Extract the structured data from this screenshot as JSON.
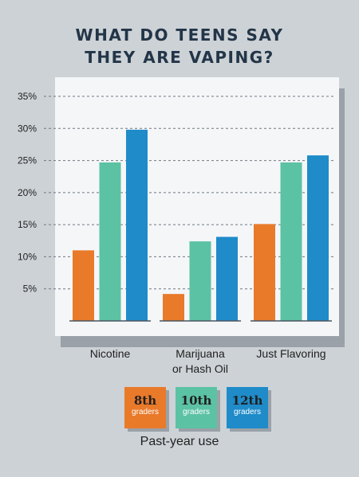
{
  "title_line1": "WHAT DO TEENS SAY",
  "title_line2": "THEY ARE VAPING?",
  "caption": "Past-year use",
  "colors": {
    "background": "#cdd2d6",
    "panel": "#f4f6f8",
    "grade8": "#e97a2a",
    "grade10": "#5cc2a4",
    "grade12": "#1f8bc9"
  },
  "legend": [
    {
      "big": "8th",
      "small": "graders",
      "color": "#e97a2a"
    },
    {
      "big": "10th",
      "small": "graders",
      "color": "#5cc2a4"
    },
    {
      "big": "12th",
      "small": "graders",
      "color": "#1f8bc9"
    }
  ],
  "chart_data": {
    "type": "bar",
    "title": "WHAT DO TEENS SAY THEY ARE VAPING?",
    "xlabel": "Past-year use",
    "ylabel": "",
    "ylim": [
      0,
      35
    ],
    "yticks": [
      "5%",
      "10%",
      "15%",
      "20%",
      "25%",
      "30%",
      "35%"
    ],
    "ytick_values": [
      5,
      10,
      15,
      20,
      25,
      30,
      35
    ],
    "grid": true,
    "categories": [
      [
        "Nicotine"
      ],
      [
        "Marijuana",
        "or Hash Oil"
      ],
      [
        "Just Flavoring"
      ]
    ],
    "series": [
      {
        "name": "8th graders",
        "values": [
          11.0,
          4.2,
          15.1
        ]
      },
      {
        "name": "10th graders",
        "values": [
          24.7,
          12.4,
          24.7
        ]
      },
      {
        "name": "12th graders",
        "values": [
          29.8,
          13.1,
          25.8
        ]
      }
    ]
  }
}
